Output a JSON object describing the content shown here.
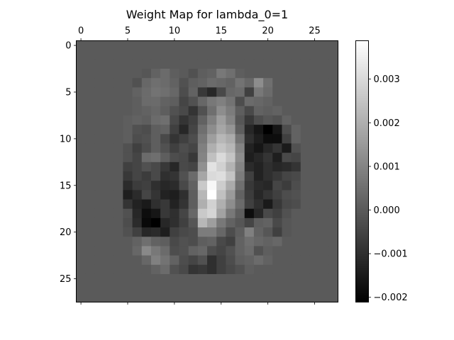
{
  "chart_data": {
    "type": "heatmap",
    "title": "Weight Map for lambda_0=1",
    "xlabel": "",
    "ylabel": "",
    "x_axis_position": "top",
    "xlim": [
      -0.5,
      27.5
    ],
    "ylim": [
      27.5,
      -0.5
    ],
    "x_ticks": [
      0,
      5,
      10,
      15,
      20,
      25
    ],
    "y_ticks": [
      0,
      5,
      10,
      15,
      20,
      25
    ],
    "x_tick_labels": [
      "0",
      "5",
      "10",
      "15",
      "20",
      "25"
    ],
    "y_tick_labels": [
      "0",
      "5",
      "10",
      "15",
      "20",
      "25"
    ],
    "colormap": "gray",
    "color_range": [
      -0.00211,
      0.00388
    ],
    "colorbar_ticks": [
      0.003,
      0.002,
      0.001,
      0.0,
      -0.001,
      -0.002
    ],
    "colorbar_tick_labels": [
      "0.003",
      "0.002",
      "0.001",
      "0.000",
      "−0.001",
      "−0.002"
    ],
    "rows": 28,
    "cols": 28,
    "background_value": 0.0,
    "values_by_row": {
      "3": {
        "7": -0.0001,
        "8": 0.0002,
        "9": 0.0004,
        "10": 0.0001,
        "12": -0.0002,
        "13": 0.0001,
        "14": 0.0002,
        "15": 0.0007,
        "16": 0.0005,
        "17": 0.0001
      },
      "4": {
        "6": -0.0002,
        "7": 0.0003,
        "8": 0.0005,
        "9": 0.0004,
        "10": 0.0002,
        "11": -0.0002,
        "12": 0.0001,
        "13": 0.0002,
        "14": 0.0004,
        "15": 0.0003,
        "16": 0.0002,
        "17": 0.0006,
        "18": 0.0003,
        "19": 0.0012,
        "20": 0.0005
      },
      "5": {
        "6": 0.0002,
        "7": 0.0004,
        "8": 0.0006,
        "9": 0.0005,
        "10": 0.0003,
        "11": -0.0003,
        "12": 0.0002,
        "13": -0.0008,
        "14": -0.0012,
        "15": -0.0004,
        "16": 0.0003,
        "17": 0.0004,
        "18": -0.0006,
        "19": 0.0007,
        "20": 0.0004
      },
      "6": {
        "6": 0.0001,
        "7": 0.0004,
        "8": 0.0004,
        "9": 0.0002,
        "10": 0.0001,
        "11": -0.0005,
        "12": -0.0002,
        "13": 0.0003,
        "14": 0.0007,
        "15": 0.0009,
        "16": 0.0006,
        "17": -0.0003,
        "18": 0.0004,
        "19": 0.0003,
        "20": 0.0002
      },
      "7": {
        "6": 0.0001,
        "7": 0.0002,
        "8": 0.0003,
        "9": 0.0001,
        "10": -0.0002,
        "11": -0.0004,
        "12": -0.0009,
        "13": -0.0002,
        "14": 0.0005,
        "15": 0.0012,
        "16": 0.0008,
        "17": 0.0001,
        "18": -0.0004,
        "19": 0.0002,
        "20": 0.0001,
        "21": 0.0002
      },
      "8": {
        "5": 0.0001,
        "6": 0.0002,
        "7": 0.0001,
        "8": 0.0004,
        "9": 0.0005,
        "10": -0.0004,
        "11": -0.0009,
        "12": -0.0006,
        "13": 0.0002,
        "14": 0.0009,
        "15": 0.0016,
        "16": 0.001,
        "17": -0.0001,
        "18": -0.0008,
        "19": -0.0003,
        "20": -0.0001,
        "21": -0.0002,
        "22": 0.0002
      },
      "9": {
        "5": 0.0001,
        "6": -0.0002,
        "7": -0.0003,
        "8": 0.0001,
        "9": 0.0002,
        "10": -0.0006,
        "11": -0.0012,
        "12": -0.0005,
        "13": 0.0005,
        "14": 0.0012,
        "15": 0.0018,
        "16": 0.0014,
        "17": 0.0001,
        "18": -0.0012,
        "19": -0.0016,
        "20": -0.0021,
        "21": -0.0016,
        "22": -0.0003,
        "23": 0.0002
      },
      "10": {
        "5": 0.0001,
        "6": -0.0003,
        "7": -0.0002,
        "8": 0.0001,
        "9": -0.0004,
        "10": -0.0009,
        "11": -0.0006,
        "12": -0.0003,
        "13": 0.0007,
        "14": 0.0016,
        "15": 0.0022,
        "16": 0.0019,
        "17": 0.0006,
        "18": -0.001,
        "19": -0.0014,
        "20": -0.0018,
        "21": -0.0018,
        "22": -0.0006,
        "23": 0.0002
      },
      "11": {
        "5": -0.0002,
        "6": -0.0006,
        "7": -0.0003,
        "8": 0.0001,
        "9": -0.0002,
        "10": -0.0006,
        "11": -0.0003,
        "12": -0.0005,
        "13": 0.0009,
        "14": 0.002,
        "15": 0.0025,
        "16": 0.0022,
        "17": 0.001,
        "18": -0.0013,
        "19": -0.0016,
        "20": -0.0012,
        "21": -0.0009,
        "22": -0.0015,
        "23": -0.0002
      },
      "12": {
        "5": -0.0002,
        "6": -0.0005,
        "7": 0.0004,
        "8": 0.0005,
        "9": 0.0001,
        "10": -0.0003,
        "11": -0.0004,
        "12": -0.0008,
        "13": 0.001,
        "14": 0.0024,
        "15": 0.003,
        "16": 0.0025,
        "17": 0.0012,
        "18": -0.0014,
        "19": -0.0012,
        "20": -0.0009,
        "21": -0.0014,
        "22": -0.0004,
        "23": -0.0005
      },
      "13": {
        "5": -0.0006,
        "6": -0.0005,
        "7": -0.0002,
        "8": -0.0004,
        "9": -0.0008,
        "10": -0.0012,
        "11": -0.0004,
        "12": -0.0005,
        "13": 0.0013,
        "14": 0.0032,
        "15": 0.0028,
        "16": 0.0021,
        "17": 0.001,
        "18": -0.0011,
        "19": -0.0013,
        "20": -0.001,
        "21": -0.0012,
        "22": -0.0011,
        "23": -0.0009
      },
      "14": {
        "5": -0.0008,
        "6": -0.0005,
        "7": -0.0007,
        "8": -0.0004,
        "9": -0.001,
        "10": -0.0009,
        "11": -0.0002,
        "12": 0.0004,
        "13": 0.0018,
        "14": 0.003,
        "15": 0.0031,
        "16": 0.0025,
        "17": 0.0008,
        "18": -0.0006,
        "19": -0.0013,
        "20": -0.001,
        "21": -0.0008,
        "22": -0.0005,
        "23": -0.0004
      },
      "15": {
        "5": -0.0011,
        "6": -0.0007,
        "7": -0.0006,
        "8": -0.001,
        "9": -0.0012,
        "10": -0.0011,
        "11": -0.0004,
        "12": 0.0002,
        "13": 0.0026,
        "14": 0.0037,
        "15": 0.0027,
        "16": 0.0019,
        "17": 0.0005,
        "18": -0.0008,
        "19": -0.0011,
        "20": -0.0012,
        "21": -0.0005,
        "22": -0.0007,
        "23": -0.0003
      },
      "16": {
        "5": -0.0014,
        "6": -0.0011,
        "7": -0.0005,
        "8": -0.0009,
        "9": -0.0013,
        "10": -0.0014,
        "11": -0.001,
        "12": 0.0001,
        "13": 0.0022,
        "14": 0.0039,
        "15": 0.0024,
        "16": 0.0015,
        "17": 0.0002,
        "18": -0.0007,
        "19": -0.0012,
        "20": -0.0009,
        "21": -0.0006,
        "22": -0.0003,
        "23": -0.0002
      },
      "17": {
        "5": -0.0009,
        "6": -0.0013,
        "7": -0.0015,
        "8": -0.001,
        "9": -0.0008,
        "10": -0.0013,
        "11": -0.0009,
        "12": 0.0001,
        "13": 0.002,
        "14": 0.0028,
        "15": 0.002,
        "16": 0.0012,
        "17": 0.0004,
        "18": -0.0006,
        "19": -0.001,
        "20": -0.0015,
        "21": -0.0008,
        "22": -0.0004,
        "23": -0.0003
      },
      "18": {
        "5": -0.0002,
        "6": -0.0012,
        "7": -0.0018,
        "8": -0.0016,
        "9": -0.0008,
        "10": -0.001,
        "11": -0.0005,
        "12": 0.0003,
        "13": 0.0026,
        "14": 0.0029,
        "15": 0.0017,
        "16": 0.0007,
        "17": 0.0001,
        "18": -0.0018,
        "19": -0.0012,
        "20": -0.0004,
        "21": -0.0006,
        "22": -0.0002
      },
      "19": {
        "5": -0.0003,
        "6": -0.0011,
        "7": -0.0019,
        "8": -0.0021,
        "9": -0.0012,
        "10": -0.001,
        "11": -0.0006,
        "12": -0.0001,
        "13": 0.0022,
        "14": 0.0016,
        "15": 0.0007,
        "16": 0.0002,
        "17": -0.0001,
        "18": -0.0005,
        "19": 0.0001,
        "20": 0.0002,
        "21": -0.0004,
        "22": -0.0001
      },
      "20": {
        "5": -0.0002,
        "6": -0.0006,
        "7": -0.0012,
        "8": -0.0011,
        "9": -0.0014,
        "10": -0.0006,
        "11": -0.0004,
        "12": -0.0003,
        "13": 0.0008,
        "14": 0.0008,
        "15": 0.0003,
        "16": -0.0003,
        "17": 0.0001,
        "18": 0.0009,
        "19": 0.0002,
        "20": -0.0001,
        "21": -0.0006,
        "22": -0.0001
      },
      "21": {
        "6": 0.0002,
        "7": 0.0005,
        "8": 0.0002,
        "9": 0.0001,
        "10": -0.0004,
        "11": -0.0002,
        "12": -0.0003,
        "13": 0.0001,
        "14": 0.0002,
        "15": -0.0004,
        "16": -0.0006,
        "17": 0.0002,
        "18": 0.0005,
        "19": 0.0003,
        "20": 0.0002,
        "21": 0.0003
      },
      "22": {
        "6": 0.0003,
        "7": 0.0011,
        "8": 0.0007,
        "9": 0.0004,
        "10": -0.0003,
        "11": -0.0002,
        "12": 0.0002,
        "13": 0.0003,
        "14": -0.0003,
        "15": -0.0005,
        "16": -0.0002,
        "17": 0.0002,
        "18": 0.0004,
        "19": -0.0002,
        "20": 0.0001
      },
      "23": {
        "7": 0.0003,
        "8": 0.0009,
        "9": 0.0006,
        "10": 0.0002,
        "11": -0.0003,
        "12": -0.0005,
        "13": -0.0002,
        "14": -0.001,
        "15": -0.0006,
        "16": -0.0003,
        "17": 0.0001,
        "18": 0.0002,
        "19": 0.0004,
        "20": 0.0002
      },
      "24": {
        "8": 0.0002,
        "9": 0.0004,
        "10": -0.0002,
        "11": -0.0004,
        "12": -0.0009,
        "13": -0.0008,
        "14": -0.001,
        "15": -0.0006,
        "16": -0.0004,
        "17": -0.0002,
        "18": 0.0001
      }
    }
  }
}
